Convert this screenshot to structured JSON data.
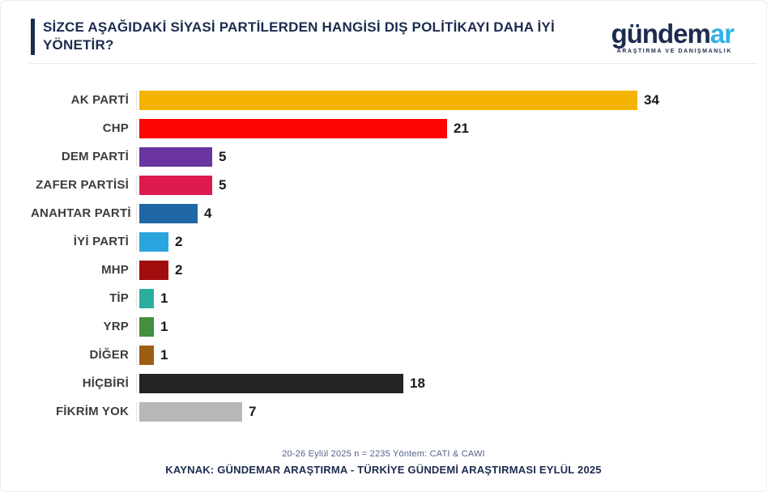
{
  "header": {
    "title_line1": "SİZCE AŞAĞIDAKİ SİYASİ PARTİLERDEN HANGİSİ DIŞ POLİTİKAYI DAHA İYİ",
    "title_line2": "YÖNETİR?"
  },
  "logo": {
    "brand_primary": "gündem",
    "brand_accent": "ar",
    "tagline": "ARAŞTIRMA VE DANIŞMANLIK"
  },
  "chart_data": {
    "type": "bar",
    "orientation": "horizontal",
    "title": "SİZCE AŞAĞIDAKİ SİYASİ PARTİLERDEN HANGİSİ DIŞ POLİTİKAYI DAHA İYİ YÖNETİR?",
    "categories": [
      "AK PARTİ",
      "CHP",
      "DEM PARTİ",
      "ZAFER PARTİSİ",
      "ANAHTAR PARTİ",
      "İYİ PARTİ",
      "MHP",
      "TİP",
      "YRP",
      "DİĞER",
      "HİÇBİRİ",
      "FİKRİM YOK"
    ],
    "values": [
      34,
      21,
      5,
      5,
      4,
      2,
      2,
      1,
      1,
      1,
      18,
      7
    ],
    "colors": [
      "#F5B301",
      "#FA0404",
      "#6A35A0",
      "#DD1A4D",
      "#1F66A5",
      "#2AA5DE",
      "#A00E0E",
      "#2BAE9D",
      "#43903F",
      "#9D5E13",
      "#242424",
      "#B8B8B8"
    ],
    "value_labels_shown": true,
    "xlabel": "",
    "ylabel": "",
    "xlim": [
      0,
      38
    ],
    "grid": "off",
    "legend": "none"
  },
  "footer": {
    "methodology": "20-26 Eylül 2025 n = 2235 Yöntem: CATI & CAWI",
    "source": "KAYNAK: GÜNDEMAR ARAŞTIRMA - TÜRKİYE GÜNDEMİ ARAŞTIRMASI EYLÜL 2025"
  },
  "colors": {
    "accent_navy": "#1C2B4F",
    "accent_blue": "#2FB2E5",
    "divider": "#E9E9E9"
  }
}
